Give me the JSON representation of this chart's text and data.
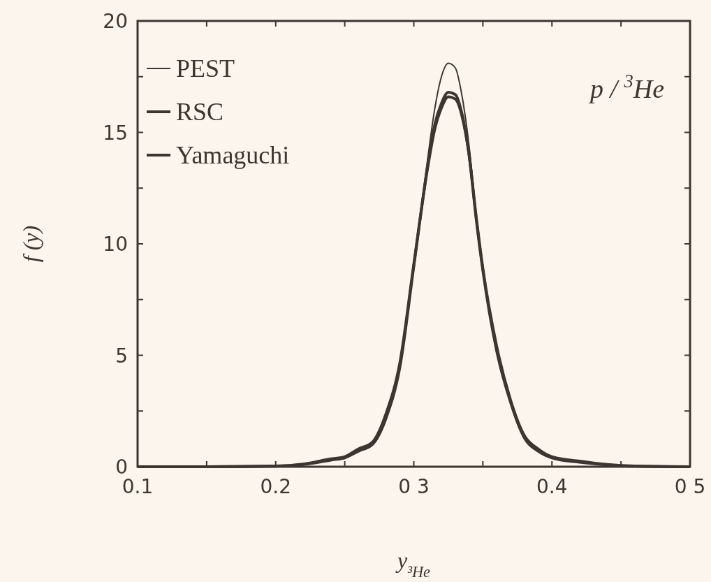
{
  "chart_data": {
    "type": "line",
    "xlabel": "y$_{³He}$",
    "ylabel": "f (y)",
    "annotations": [
      "p / $^{3}$He"
    ],
    "x": [
      0.1,
      0.15,
      0.2,
      0.22,
      0.24,
      0.25,
      0.26,
      0.27,
      0.28,
      0.29,
      0.3,
      0.31,
      0.315,
      0.32,
      0.325,
      0.33,
      0.335,
      0.34,
      0.345,
      0.35,
      0.36,
      0.37,
      0.38,
      0.39,
      0.4,
      0.42,
      0.44,
      0.46,
      0.5
    ],
    "series": [
      {
        "name": "PEST",
        "color": "#3d3630",
        "values": [
          0,
          0,
          0.02,
          0.1,
          0.3,
          0.4,
          0.7,
          1.0,
          2.2,
          4.5,
          9,
          13.8,
          16,
          17.5,
          18.1,
          17.9,
          16.6,
          14.4,
          11.4,
          8.8,
          5.2,
          2.9,
          1.3,
          0.7,
          0.4,
          0.2,
          0.08,
          0.02,
          0
        ]
      },
      {
        "name": "RSC",
        "color": "#3d3630",
        "values": [
          0,
          0,
          0.02,
          0.1,
          0.3,
          0.4,
          0.7,
          1.0,
          2.2,
          4.5,
          9,
          13.5,
          15.3,
          16.3,
          16.8,
          16.7,
          15.8,
          14,
          11.2,
          8.8,
          5.2,
          2.9,
          1.3,
          0.7,
          0.4,
          0.2,
          0.08,
          0.02,
          0
        ]
      },
      {
        "name": "Yamaguchi",
        "color": "#3d3630",
        "values": [
          0,
          0,
          0.03,
          0.12,
          0.35,
          0.45,
          0.8,
          1.1,
          2.4,
          4.7,
          9.1,
          13.4,
          15.1,
          16.1,
          16.6,
          16.5,
          15.7,
          14,
          11.3,
          8.9,
          5.4,
          3.0,
          1.4,
          0.8,
          0.45,
          0.25,
          0.1,
          0.03,
          0
        ]
      }
    ],
    "xlim": [
      0.1,
      0.5
    ],
    "ylim": [
      0,
      20
    ],
    "xticks": [
      0.1,
      {
        "value": 0.15,
        "label": null
      },
      0.2,
      {
        "value": 0.25,
        "label": null
      },
      {
        "value": 0.3,
        "label": "0 3"
      },
      {
        "value": 0.35,
        "label": null
      },
      0.4,
      {
        "value": 0.45,
        "label": null
      },
      {
        "value": 0.5,
        "label": "0 5"
      }
    ],
    "yticks": [
      0,
      {
        "value": 2.5,
        "label": null
      },
      5,
      {
        "value": 7.5,
        "label": null
      },
      10,
      {
        "value": 12.5,
        "label": null
      },
      15,
      {
        "value": 17.5,
        "label": null
      },
      20
    ],
    "legend": "top left",
    "grid": false,
    "line_style": "solid",
    "marker": "none"
  }
}
